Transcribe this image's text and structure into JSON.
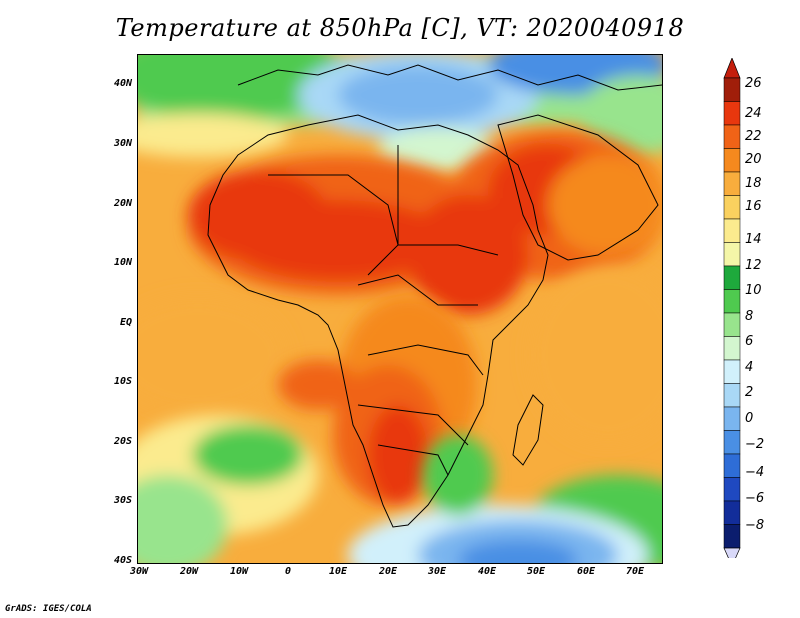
{
  "title": "Temperature at 850hPa [C], VT: 2020040918",
  "credit": "GrADS: IGES/COLA",
  "y_ticks": [
    "40N",
    "30N",
    "20N",
    "10N",
    "EQ",
    "10S",
    "20S",
    "30S",
    "40S"
  ],
  "x_ticks": [
    "30W",
    "20W",
    "10W",
    "0",
    "10E",
    "20E",
    "30E",
    "40E",
    "50E",
    "60E",
    "70E"
  ],
  "colorbar": {
    "labels": [
      "26",
      "24",
      "22",
      "20",
      "18",
      "16",
      "14",
      "12",
      "10",
      "8",
      "6",
      "4",
      "2",
      "0",
      "−2",
      "−4",
      "−6",
      "−8"
    ],
    "colors": [
      "#a01e0a",
      "#e8370e",
      "#f06317",
      "#f5891e",
      "#f8ad3d",
      "#fad15f",
      "#fbeb8e",
      "#f4f6a8",
      "#1ea93c",
      "#4fca4f",
      "#98e48d",
      "#d3f6cf",
      "#d1f0fb",
      "#a9d8f6",
      "#7ab5ef",
      "#4a8fe4",
      "#2e6dd7",
      "#1f49c0",
      "#122d9a",
      "#0b1d6e"
    ],
    "top_arrow_color": "#c41e0c",
    "bottom_arrow_color": "#d9d9f9"
  }
}
